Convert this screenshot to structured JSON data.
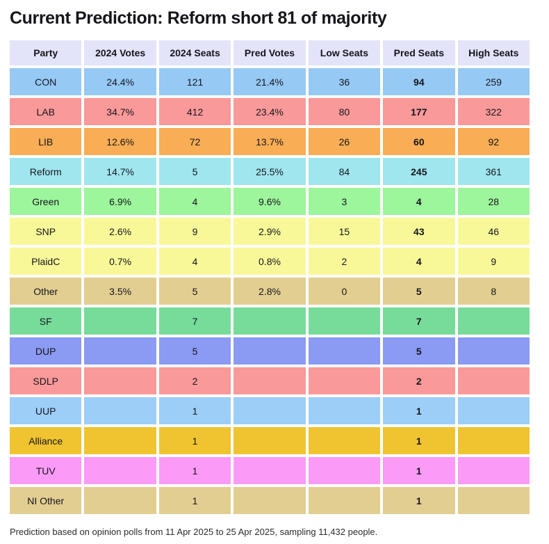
{
  "page": {
    "title": "Current Prediction: Reform short 81 of majority",
    "footer": "Prediction based on opinion polls from 11 Apr 2025 to 25 Apr 2025, sampling 11,432 people."
  },
  "colors": {
    "header_bg": "#e3e3f9",
    "text": "#15151c"
  },
  "table": {
    "columns": [
      "Party",
      "2024 Votes",
      "2024 Seats",
      "Pred Votes",
      "Low Seats",
      "Pred Seats",
      "High Seats"
    ],
    "bold_column_label": "Pred Seats",
    "rows": [
      {
        "party": "CON",
        "color": "#96c9f4",
        "cells": [
          "24.4%",
          "121",
          "21.4%",
          "36",
          "94",
          "259"
        ]
      },
      {
        "party": "LAB",
        "color": "#fa9999",
        "cells": [
          "34.7%",
          "412",
          "23.4%",
          "80",
          "177",
          "322"
        ]
      },
      {
        "party": "LIB",
        "color": "#f9ad55",
        "cells": [
          "12.6%",
          "72",
          "13.7%",
          "26",
          "60",
          "92"
        ]
      },
      {
        "party": "Reform",
        "color": "#a0e6ef",
        "cells": [
          "14.7%",
          "5",
          "25.5%",
          "84",
          "245",
          "361"
        ]
      },
      {
        "party": "Green",
        "color": "#9df59c",
        "cells": [
          "6.9%",
          "4",
          "9.6%",
          "3",
          "4",
          "28"
        ]
      },
      {
        "party": "SNP",
        "color": "#f8f899",
        "cells": [
          "2.6%",
          "9",
          "2.9%",
          "15",
          "43",
          "46"
        ]
      },
      {
        "party": "PlaidC",
        "color": "#f8f899",
        "cells": [
          "0.7%",
          "4",
          "0.8%",
          "2",
          "4",
          "9"
        ]
      },
      {
        "party": "Other",
        "color": "#e2ce91",
        "cells": [
          "3.5%",
          "5",
          "2.8%",
          "0",
          "5",
          "8"
        ]
      },
      {
        "party": "SF",
        "color": "#77dc9a",
        "cells": [
          "",
          "7",
          "",
          "",
          "7",
          ""
        ]
      },
      {
        "party": "DUP",
        "color": "#8b9af2",
        "cells": [
          "",
          "5",
          "",
          "",
          "5",
          ""
        ]
      },
      {
        "party": "SDLP",
        "color": "#fa9999",
        "cells": [
          "",
          "2",
          "",
          "",
          "2",
          ""
        ]
      },
      {
        "party": "UUP",
        "color": "#9dcef8",
        "cells": [
          "",
          "1",
          "",
          "",
          "1",
          ""
        ]
      },
      {
        "party": "Alliance",
        "color": "#f0c431",
        "cells": [
          "",
          "1",
          "",
          "",
          "1",
          ""
        ]
      },
      {
        "party": "TUV",
        "color": "#fb9af7",
        "cells": [
          "",
          "1",
          "",
          "",
          "1",
          ""
        ]
      },
      {
        "party": "NI Other",
        "color": "#e2ce91",
        "cells": [
          "",
          "1",
          "",
          "",
          "1",
          ""
        ]
      }
    ]
  }
}
